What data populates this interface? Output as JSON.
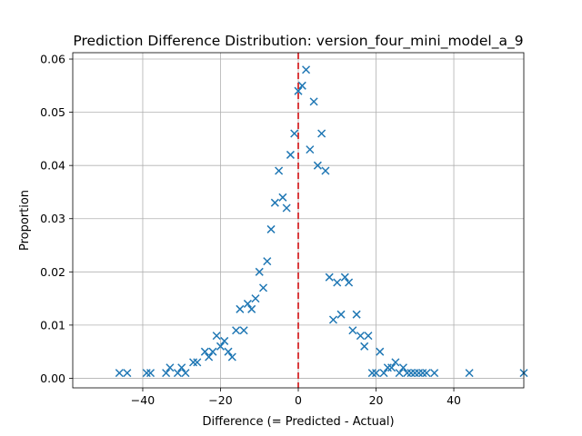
{
  "chart_data": {
    "type": "scatter",
    "title": "Prediction Difference Distribution: version_four_mini_model_a_9",
    "xlabel": "Difference (= Predicted - Actual)",
    "ylabel": "Proportion",
    "xlim": [
      -58,
      58
    ],
    "ylim": [
      -0.0018,
      0.0612
    ],
    "xticks": [
      -40,
      -20,
      0,
      20,
      40
    ],
    "xtick_labels": [
      "−40",
      "−20",
      "0",
      "20",
      "40"
    ],
    "yticks": [
      0.0,
      0.01,
      0.02,
      0.03,
      0.04,
      0.05,
      0.06
    ],
    "ytick_labels": [
      "0.00",
      "0.01",
      "0.02",
      "0.03",
      "0.04",
      "0.05",
      "0.06"
    ],
    "grid": true,
    "marker": "x",
    "marker_color": "#1f77b4",
    "reference_line": {
      "x": 0,
      "color": "#d62728",
      "style": "dashed"
    },
    "points": [
      [
        -46,
        0.001
      ],
      [
        -44,
        0.001
      ],
      [
        -39,
        0.001
      ],
      [
        -38,
        0.001
      ],
      [
        -34,
        0.001
      ],
      [
        -33,
        0.002
      ],
      [
        -31,
        0.001
      ],
      [
        -30,
        0.002
      ],
      [
        -29,
        0.001
      ],
      [
        -27,
        0.003
      ],
      [
        -26,
        0.003
      ],
      [
        -24,
        0.005
      ],
      [
        -23,
        0.004
      ],
      [
        -22,
        0.005
      ],
      [
        -21,
        0.008
      ],
      [
        -20,
        0.006
      ],
      [
        -19,
        0.007
      ],
      [
        -18,
        0.005
      ],
      [
        -17,
        0.004
      ],
      [
        -16,
        0.009
      ],
      [
        -15,
        0.013
      ],
      [
        -14,
        0.009
      ],
      [
        -13,
        0.014
      ],
      [
        -12,
        0.013
      ],
      [
        -11,
        0.015
      ],
      [
        -10,
        0.02
      ],
      [
        -9,
        0.017
      ],
      [
        -8,
        0.022
      ],
      [
        -7,
        0.028
      ],
      [
        -6,
        0.033
      ],
      [
        -5,
        0.039
      ],
      [
        -4,
        0.034
      ],
      [
        -3,
        0.032
      ],
      [
        -2,
        0.042
      ],
      [
        -1,
        0.046
      ],
      [
        0,
        0.054
      ],
      [
        1,
        0.055
      ],
      [
        2,
        0.058
      ],
      [
        3,
        0.043
      ],
      [
        4,
        0.052
      ],
      [
        5,
        0.04
      ],
      [
        6,
        0.046
      ],
      [
        7,
        0.039
      ],
      [
        8,
        0.019
      ],
      [
        9,
        0.011
      ],
      [
        10,
        0.018
      ],
      [
        11,
        0.012
      ],
      [
        12,
        0.019
      ],
      [
        13,
        0.018
      ],
      [
        14,
        0.009
      ],
      [
        15,
        0.012
      ],
      [
        16,
        0.008
      ],
      [
        17,
        0.006
      ],
      [
        18,
        0.008
      ],
      [
        19,
        0.001
      ],
      [
        20,
        0.001
      ],
      [
        21,
        0.005
      ],
      [
        22,
        0.001
      ],
      [
        23,
        0.002
      ],
      [
        24,
        0.002
      ],
      [
        25,
        0.003
      ],
      [
        26,
        0.001
      ],
      [
        27,
        0.002
      ],
      [
        28,
        0.001
      ],
      [
        29,
        0.001
      ],
      [
        30,
        0.001
      ],
      [
        31,
        0.001
      ],
      [
        32,
        0.001
      ],
      [
        33,
        0.001
      ],
      [
        35,
        0.001
      ],
      [
        44,
        0.001
      ],
      [
        58,
        0.001
      ]
    ]
  }
}
